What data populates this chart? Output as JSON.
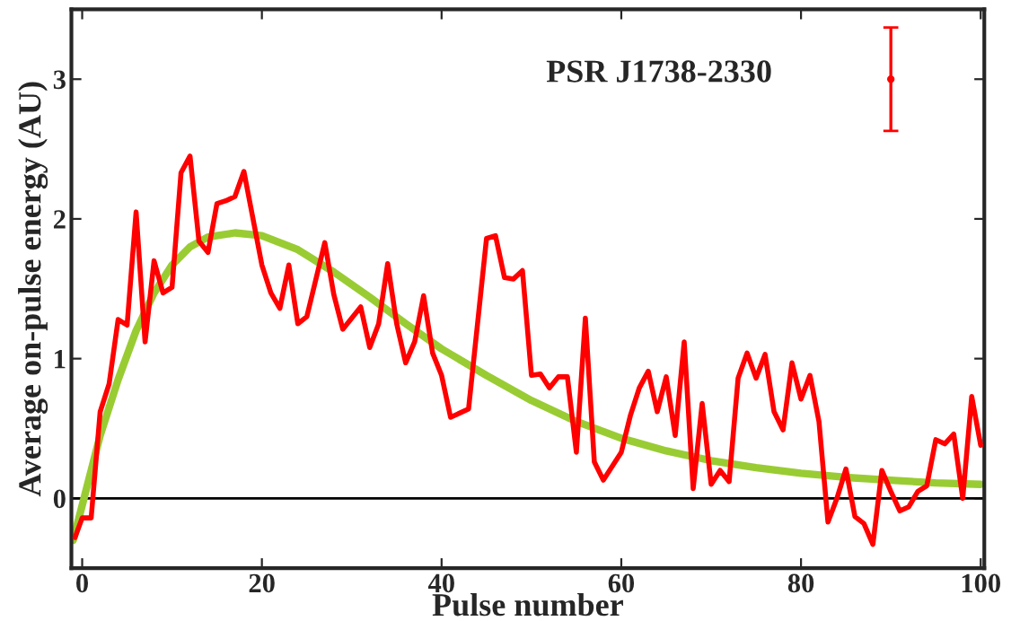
{
  "chart_data": {
    "type": "line",
    "xlabel": "Pulse number",
    "ylabel": "Average on-pulse energy (AU)",
    "annotations": [
      "PSR J1738-2330"
    ],
    "xlim": [
      -1.2,
      100.4
    ],
    "ylim": [
      -0.5,
      3.5
    ],
    "xticks": [
      0,
      20,
      40,
      60,
      80,
      100
    ],
    "yticks": [
      0,
      1,
      2,
      3
    ],
    "grid": false,
    "legend": false,
    "ref_lines": [
      {
        "axis": "y",
        "value": 0,
        "color": "#000000"
      }
    ],
    "series": [
      {
        "color": "#ff0000",
        "x": [
          -0.8,
          0,
          1,
          2,
          3,
          4,
          5,
          6,
          7,
          8,
          9,
          10,
          11,
          12,
          13,
          14,
          15,
          16,
          17,
          18,
          20,
          21,
          22,
          23,
          24,
          25,
          27,
          28,
          29,
          31,
          32,
          33,
          34,
          35,
          36,
          37,
          38,
          39,
          40,
          41,
          43,
          45,
          46,
          47,
          48,
          49,
          50,
          51,
          52,
          53,
          54,
          55,
          56,
          57,
          58,
          60,
          61,
          62,
          63,
          64,
          65,
          66,
          67,
          68,
          69,
          70,
          71,
          72,
          73,
          74,
          75,
          76,
          77,
          78,
          79,
          80,
          81,
          82,
          83,
          84,
          85,
          86,
          87,
          88,
          89,
          90,
          91,
          92,
          93,
          94,
          95,
          96,
          97,
          98,
          99,
          100
        ],
        "values": [
          -0.28,
          -0.14,
          -0.14,
          0.62,
          0.82,
          1.28,
          1.24,
          2.05,
          1.12,
          1.7,
          1.47,
          1.51,
          2.33,
          2.45,
          1.84,
          1.76,
          2.11,
          2.13,
          2.16,
          2.34,
          1.67,
          1.47,
          1.36,
          1.67,
          1.25,
          1.3,
          1.83,
          1.46,
          1.21,
          1.37,
          1.08,
          1.25,
          1.68,
          1.25,
          0.97,
          1.12,
          1.45,
          1.04,
          0.88,
          0.58,
          0.64,
          1.86,
          1.88,
          1.58,
          1.57,
          1.63,
          0.88,
          0.89,
          0.79,
          0.87,
          0.87,
          0.33,
          1.29,
          0.26,
          0.13,
          0.33,
          0.59,
          0.79,
          0.91,
          0.62,
          0.87,
          0.45,
          1.12,
          0.07,
          0.68,
          0.1,
          0.2,
          0.12,
          0.86,
          1.04,
          0.86,
          1.03,
          0.62,
          0.49,
          0.97,
          0.71,
          0.88,
          0.55,
          -0.17,
          0,
          0.21,
          -0.13,
          -0.18,
          -0.33,
          0.2,
          0.05,
          -0.09,
          -0.06,
          0.05,
          0.09,
          0.42,
          0.39,
          0.46,
          0,
          0.73,
          0.38
        ]
      },
      {
        "color": "#99cc33",
        "x": [
          -1,
          0,
          2,
          4,
          6,
          8,
          10,
          12,
          14,
          17,
          20,
          24,
          28,
          32,
          36,
          40,
          45,
          50,
          55,
          60,
          65,
          70,
          75,
          80,
          85,
          90,
          95,
          100
        ],
        "values": [
          -0.3,
          -0.05,
          0.45,
          0.85,
          1.2,
          1.47,
          1.67,
          1.8,
          1.87,
          1.9,
          1.88,
          1.78,
          1.62,
          1.44,
          1.25,
          1.07,
          0.88,
          0.7,
          0.55,
          0.43,
          0.34,
          0.27,
          0.22,
          0.18,
          0.15,
          0.13,
          0.11,
          0.1
        ]
      },
      {
        "type": "scatter",
        "color": "#ff0000",
        "x": [
          90
        ],
        "values": [
          3
        ],
        "errors": [
          0.37
        ]
      }
    ]
  }
}
